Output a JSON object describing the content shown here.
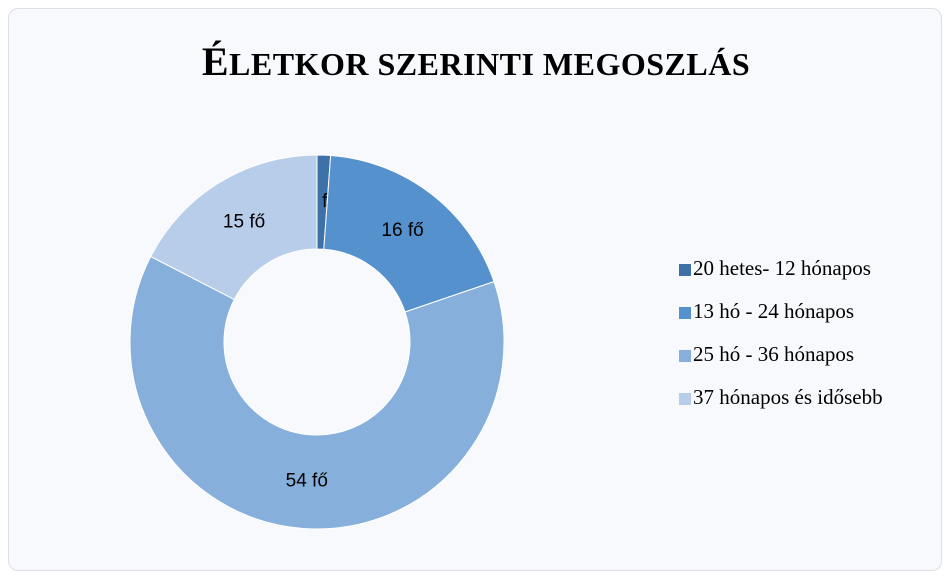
{
  "chart_data": {
    "type": "donut",
    "title": "ÉLETKOR SZERINTI MEGOSZLÁS",
    "categories": [
      "20 hetes- 12 hónapos",
      "13 hó - 24 hónapos",
      "25 hó - 36 hónapos",
      "37 hónapos és idősebb"
    ],
    "values": [
      1,
      16,
      54,
      15
    ],
    "value_labels": [
      "1 fő",
      "16 fő",
      "54 fő",
      "15 fő"
    ],
    "colors": [
      "#3f71a9",
      "#5591cd",
      "#86afdc",
      "#b8cde9"
    ],
    "legend": "right"
  }
}
